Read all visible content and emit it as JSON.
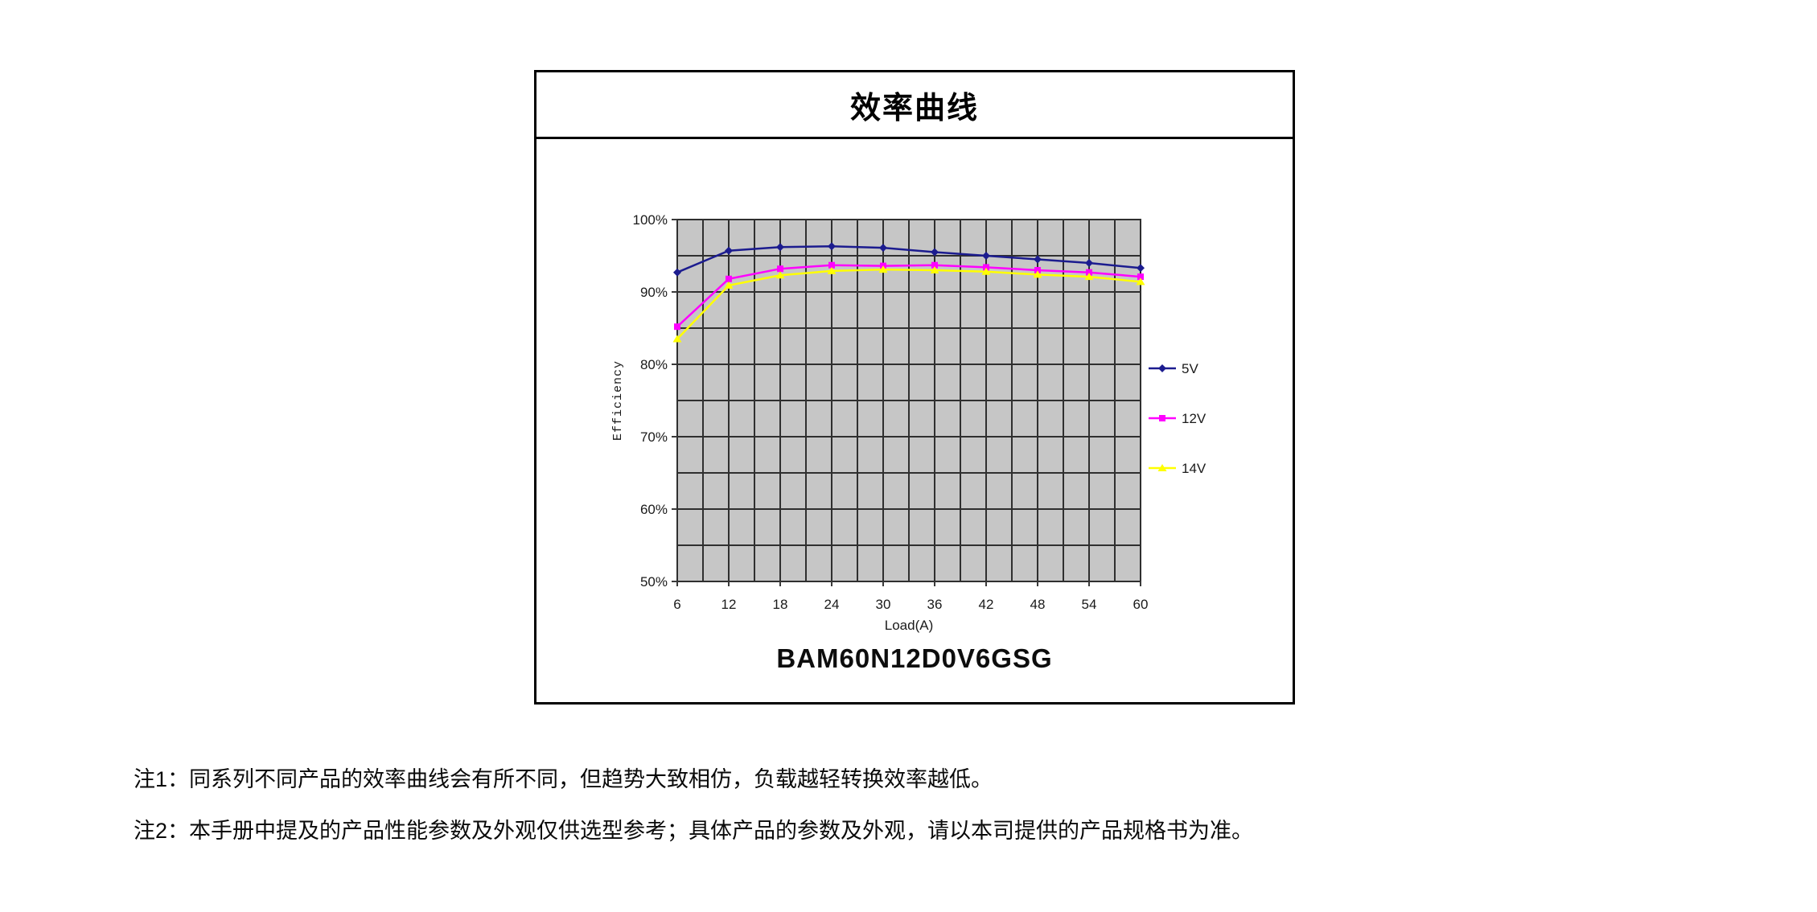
{
  "box": {
    "title": "效率曲线",
    "model": "BAM60N12D0V6GSG"
  },
  "notes": [
    {
      "text": "注1：同系列不同产品的效率曲线会有所不同，但趋势大致相仿，负载越轻转换效率越低。"
    },
    {
      "text": "注2：本手册中提及的产品性能参数及外观仅供选型参考；具体产品的参数及外观，请以本司提供的产品规格书为准。"
    }
  ],
  "chart_data": {
    "type": "line",
    "title": "",
    "xlabel": "Load(A)",
    "ylabel": "Efficiency",
    "x": [
      6,
      12,
      18,
      24,
      30,
      36,
      42,
      48,
      54,
      60
    ],
    "x_tick_labels": [
      "6",
      "12",
      "18",
      "24",
      "30",
      "36",
      "42",
      "48",
      "54",
      "60"
    ],
    "xlim": [
      6,
      60
    ],
    "ylim": [
      50,
      100
    ],
    "y_ticks": [
      50,
      60,
      70,
      80,
      90,
      100
    ],
    "y_tick_labels": [
      "50%",
      "60%",
      "70%",
      "80%",
      "90%",
      "100%"
    ],
    "x_minor_step": 3,
    "y_minor_step": 5,
    "grid": true,
    "legend_position": "right",
    "colors": {
      "plot_bg": "#c6c6c6",
      "grid": "#2f2f2f",
      "axis_text": "#1a1a1a"
    },
    "series": [
      {
        "name": "5V",
        "color": "#1c1c8f",
        "marker": "diamond",
        "values": [
          92.7,
          95.7,
          96.2,
          96.3,
          96.1,
          95.5,
          95.0,
          94.5,
          94.0,
          93.3
        ]
      },
      {
        "name": "12V",
        "color": "#ff00ff",
        "marker": "square",
        "values": [
          85.2,
          91.8,
          93.2,
          93.7,
          93.6,
          93.7,
          93.4,
          93.0,
          92.7,
          92.1
        ]
      },
      {
        "name": "14V",
        "color": "#ffff00",
        "marker": "triangle",
        "values": [
          83.5,
          90.9,
          92.3,
          92.9,
          93.1,
          93.0,
          92.8,
          92.4,
          92.1,
          91.4
        ]
      }
    ]
  }
}
